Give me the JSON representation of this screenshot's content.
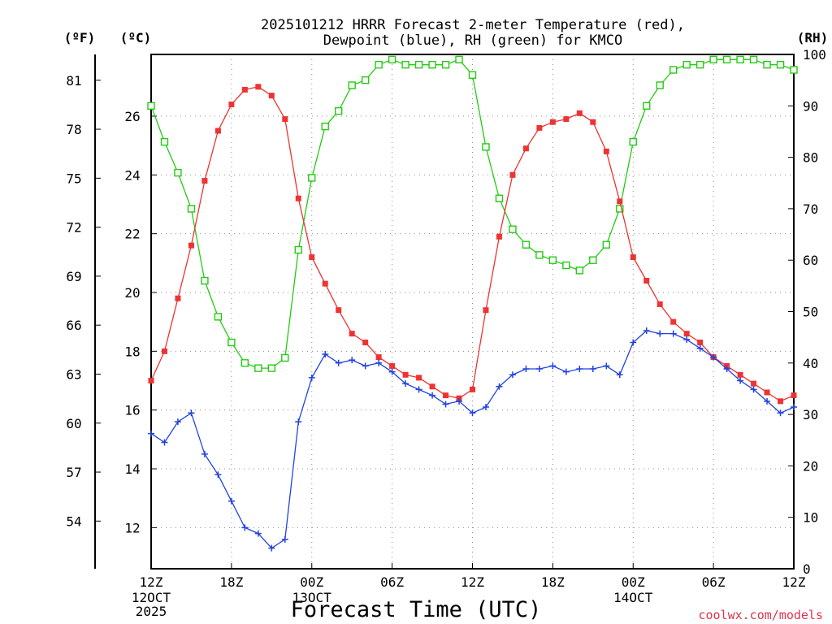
{
  "title_lines": [
    "2025101212 HRRR Forecast 2-meter Temperature (red),",
    "Dewpoint (blue), RH (green) for KMCO"
  ],
  "units": {
    "fahrenheit": "(ºF)",
    "celsius": "(ºC)",
    "rh": "(RH)"
  },
  "xlabel": "Forecast Time (UTC)",
  "credit": "coolwx.com/models",
  "colors": {
    "temperature": "#ee3333",
    "dewpoint": "#2244dd",
    "rh": "#22cc11",
    "credit": "#e0334a"
  },
  "chart_data": {
    "type": "line",
    "x_range_hours": [
      0,
      48
    ],
    "x_ticks": [
      {
        "hour": 0,
        "label": "12Z",
        "sub": [
          "12OCT",
          "2025"
        ]
      },
      {
        "hour": 6,
        "label": "18Z",
        "sub": []
      },
      {
        "hour": 12,
        "label": "00Z",
        "sub": [
          "13OCT"
        ]
      },
      {
        "hour": 18,
        "label": "06Z",
        "sub": []
      },
      {
        "hour": 24,
        "label": "12Z",
        "sub": []
      },
      {
        "hour": 30,
        "label": "18Z",
        "sub": []
      },
      {
        "hour": 36,
        "label": "00Z",
        "sub": [
          "14OCT"
        ]
      },
      {
        "hour": 42,
        "label": "06Z",
        "sub": []
      },
      {
        "hour": 48,
        "label": "12Z",
        "sub": []
      }
    ],
    "celsius_axis": {
      "range": [
        10.6,
        28.1
      ],
      "ticks": [
        12,
        14,
        16,
        18,
        20,
        22,
        24,
        26
      ]
    },
    "fahrenheit_axis": {
      "ticks": [
        54,
        57,
        60,
        63,
        66,
        69,
        72,
        75,
        78,
        81
      ]
    },
    "rh_axis": {
      "range": [
        0,
        100
      ],
      "ticks": [
        0,
        10,
        20,
        30,
        40,
        50,
        60,
        70,
        80,
        90,
        100
      ]
    },
    "series": [
      {
        "name": "Temperature (red)",
        "axis": "celsius",
        "color": "#ee3333",
        "marker": "filled-square",
        "values": [
          17.0,
          18.0,
          19.8,
          21.6,
          23.8,
          25.5,
          26.4,
          26.9,
          27.0,
          26.7,
          25.9,
          23.2,
          21.2,
          20.3,
          19.4,
          18.6,
          18.3,
          17.8,
          17.5,
          17.2,
          17.1,
          16.8,
          16.5,
          16.4,
          16.7,
          19.4,
          21.9,
          24.0,
          24.9,
          25.6,
          25.8,
          25.9,
          26.1,
          25.8,
          24.8,
          23.1,
          21.2,
          20.4,
          19.6,
          19.0,
          18.6,
          18.3,
          17.8,
          17.5,
          17.2,
          16.9,
          16.6,
          16.3,
          16.5
        ]
      },
      {
        "name": "Dewpoint (blue)",
        "axis": "celsius",
        "color": "#2244dd",
        "marker": "plus",
        "values": [
          15.2,
          14.9,
          15.6,
          15.9,
          14.5,
          13.8,
          12.9,
          12.0,
          11.8,
          11.3,
          11.6,
          15.6,
          17.1,
          17.9,
          17.6,
          17.7,
          17.5,
          17.6,
          17.3,
          16.9,
          16.7,
          16.5,
          16.2,
          16.3,
          15.9,
          16.1,
          16.8,
          17.2,
          17.4,
          17.4,
          17.5,
          17.3,
          17.4,
          17.4,
          17.5,
          17.2,
          18.3,
          18.7,
          18.6,
          18.6,
          18.4,
          18.1,
          17.8,
          17.4,
          17.0,
          16.7,
          16.3,
          15.9,
          16.1
        ]
      },
      {
        "name": "RH (green)",
        "axis": "rh",
        "color": "#22cc11",
        "marker": "open-square",
        "values": [
          90,
          83,
          77,
          70,
          56,
          49,
          44,
          40,
          39,
          39,
          41,
          62,
          76,
          86,
          89,
          94,
          95,
          98,
          99,
          98,
          98,
          98,
          98,
          99,
          96,
          82,
          72,
          66,
          63,
          61,
          60,
          59,
          58,
          60,
          63,
          70,
          83,
          90,
          94,
          97,
          98,
          98,
          99,
          99,
          99,
          99,
          98,
          98,
          97
        ]
      }
    ]
  }
}
